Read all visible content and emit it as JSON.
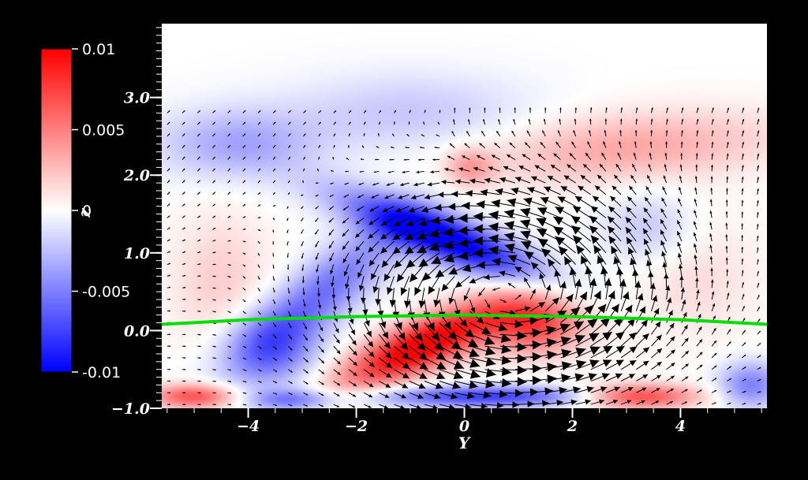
{
  "chart_data": {
    "type": "heatmap",
    "title": "",
    "xlabel": "Y",
    "ylabel": "z",
    "xlim": [
      -5.6,
      5.6
    ],
    "ylim": [
      -1.0,
      3.95
    ],
    "x_ticks": [
      {
        "value": -4,
        "label": "−4"
      },
      {
        "value": -2,
        "label": "−2"
      },
      {
        "value": 0,
        "label": "0"
      },
      {
        "value": 2,
        "label": "2"
      },
      {
        "value": 4,
        "label": "4"
      }
    ],
    "y_ticks": [
      {
        "value": -1.0,
        "label": "−1.0"
      },
      {
        "value": 0.0,
        "label": "0.0"
      },
      {
        "value": 1.0,
        "label": "1.0"
      },
      {
        "value": 2.0,
        "label": "2.0"
      },
      {
        "value": 3.0,
        "label": "3.0"
      }
    ],
    "colorbar": {
      "min": -0.01,
      "max": 0.01,
      "colors": [
        "#0000ff",
        "#ffffff",
        "#ff0000"
      ],
      "ticks": [
        {
          "value": 0.01,
          "label": "0.01"
        },
        {
          "value": 0.005,
          "label": "0.005"
        },
        {
          "value": 0,
          "label": "0"
        },
        {
          "value": -0.005,
          "label": "-0.005"
        },
        {
          "value": -0.01,
          "label": "-0.01"
        }
      ]
    },
    "field_features": [
      {
        "kind": "positive",
        "x": -0.8,
        "y": -0.2,
        "sx": 1.5,
        "sy": 0.35,
        "tilt": 0.28,
        "amp": 1.1
      },
      {
        "kind": "positive",
        "x": 1.3,
        "y": 0.1,
        "sx": 0.9,
        "sy": 0.4,
        "tilt": 0.0,
        "amp": 0.75
      },
      {
        "kind": "negative",
        "x": -0.4,
        "y": 1.2,
        "sx": 1.8,
        "sy": 0.32,
        "tilt": -0.25,
        "amp": 1.1
      },
      {
        "kind": "negative",
        "x": -2.6,
        "y": 0.5,
        "sx": 1.5,
        "sy": 0.5,
        "tilt": 0.5,
        "amp": 0.55
      },
      {
        "kind": "negative",
        "x": -3.6,
        "y": -0.25,
        "sx": 0.9,
        "sy": 0.5,
        "tilt": 0.0,
        "amp": 0.5
      },
      {
        "kind": "positive",
        "x": 3.2,
        "y": -0.85,
        "sx": 1.1,
        "sy": 0.16,
        "tilt": 0.0,
        "amp": 0.8
      },
      {
        "kind": "positive",
        "x": -5.0,
        "y": -0.85,
        "sx": 0.8,
        "sy": 0.16,
        "tilt": 0.0,
        "amp": 0.7
      },
      {
        "kind": "negative",
        "x": 0.4,
        "y": -0.85,
        "sx": 2.2,
        "sy": 0.14,
        "tilt": 0.0,
        "amp": 0.75
      },
      {
        "kind": "negative",
        "x": -3.2,
        "y": -0.9,
        "sx": 0.8,
        "sy": 0.14,
        "tilt": 0.0,
        "amp": 0.5
      },
      {
        "kind": "negative",
        "x": 5.3,
        "y": -0.7,
        "sx": 0.6,
        "sy": 0.3,
        "tilt": 0.0,
        "amp": 0.5
      },
      {
        "kind": "positive",
        "x": 3.0,
        "y": 2.35,
        "sx": 2.7,
        "sy": 0.45,
        "tilt": 0.05,
        "amp": 0.35
      },
      {
        "kind": "positive",
        "x": 0.1,
        "y": 2.1,
        "sx": 0.45,
        "sy": 0.25,
        "tilt": 0.0,
        "amp": 0.35
      },
      {
        "kind": "negative",
        "x": -4.2,
        "y": 2.4,
        "sx": 1.5,
        "sy": 0.45,
        "tilt": 0.0,
        "amp": 0.35
      },
      {
        "kind": "negative",
        "x": -1.0,
        "y": 2.8,
        "sx": 2.2,
        "sy": 0.5,
        "tilt": 0.0,
        "amp": 0.22
      },
      {
        "kind": "positive",
        "x": -4.5,
        "y": 0.6,
        "sx": 0.9,
        "sy": 0.9,
        "tilt": 0.0,
        "amp": 0.2
      },
      {
        "kind": "positive",
        "x": 4.2,
        "y": 0.7,
        "sx": 1.2,
        "sy": 0.8,
        "tilt": 0.0,
        "amp": 0.15
      },
      {
        "kind": "negative",
        "x": 3.4,
        "y": 1.3,
        "sx": 0.9,
        "sy": 0.5,
        "tilt": 0.0,
        "amp": 0.25
      }
    ],
    "overlay_line": {
      "color": "#00dd00",
      "x": [
        -5.6,
        -4,
        -2,
        0,
        2,
        4,
        5.6
      ],
      "y": [
        0.08,
        0.14,
        0.18,
        0.2,
        0.18,
        0.14,
        0.08
      ]
    },
    "vectors": {
      "color": "#000000",
      "x_start": -5.5,
      "x_step": 0.28,
      "x_count": 40,
      "y_start": -0.95,
      "y_step": 0.15,
      "y_count": 26,
      "y_max_drawn": 3.0
    }
  }
}
